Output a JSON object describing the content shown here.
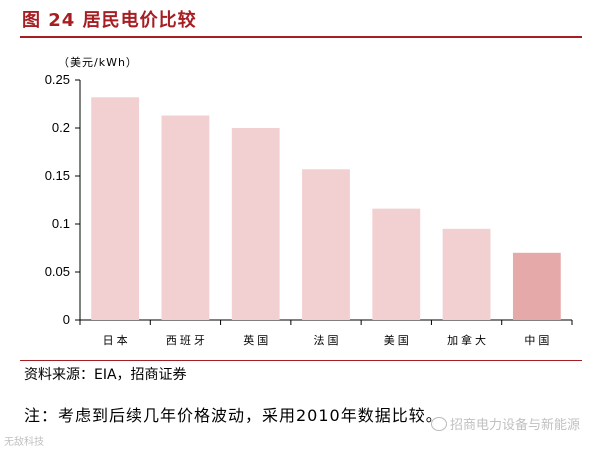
{
  "title": "图 24 居民电价比较",
  "chart_data": {
    "type": "bar",
    "unit_label": "（美元/kWh）",
    "categories": [
      "日本",
      "西班牙",
      "英国",
      "法国",
      "美国",
      "加拿大",
      "中国"
    ],
    "values": [
      0.232,
      0.213,
      0.2,
      0.157,
      0.116,
      0.095,
      0.07
    ],
    "ylim": [
      0,
      0.25
    ],
    "yticks": [
      0,
      0.05,
      0.1,
      0.15,
      0.2,
      0.25
    ],
    "ytick_labels": [
      "0",
      "0.05",
      "0.1",
      "0.15",
      "0.2",
      "0.25"
    ],
    "bar_color": "#f2cfd0",
    "highlight_color": "#e6a9aa",
    "highlight_index": 6,
    "grid": false
  },
  "source": "资料来源：EIA，招商证券",
  "note": "注：考虑到后续几年价格波动，采用2010年数据比较。",
  "watermark_right": "招商电力设备与新能源",
  "watermark_left": "无敌科技"
}
